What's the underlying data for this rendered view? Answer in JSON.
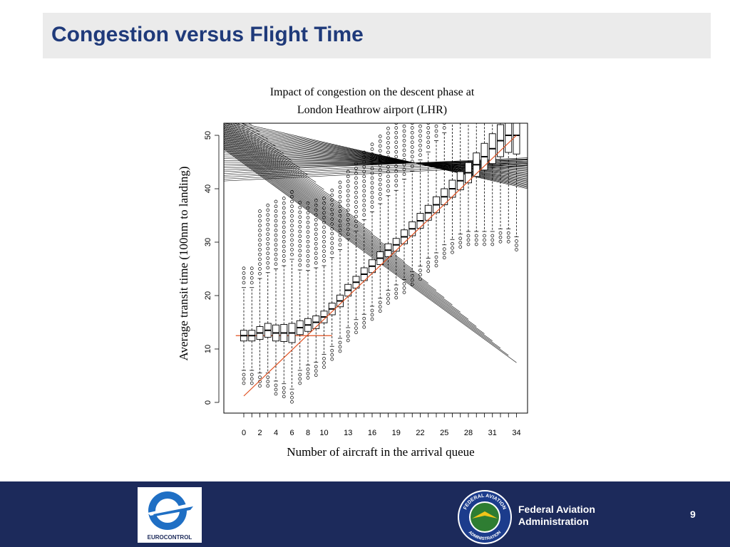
{
  "slide": {
    "title": "Congestion versus Flight Time",
    "page_number": "9"
  },
  "footer": {
    "eurocontrol_label": "EUROCONTROL",
    "faa_line1": "Federal Aviation",
    "faa_line2": "Administration",
    "seal_top_text": "FEDERAL AVIATION",
    "seal_bottom_text": "ADMINISTRATION"
  },
  "colors": {
    "title_text": "#1f3a7a",
    "title_bar": "#ebebeb",
    "footer_bg": "#1c2a5b",
    "fit_line": "#e05020"
  },
  "chart_data": {
    "type": "boxplot",
    "title_line1": "Impact of congestion on the descent phase at",
    "title_line2": "London Heathrow airport (LHR)",
    "xlabel": "Number of aircraft in the arrival queue",
    "ylabel": "Average transit time (100nm to landing)",
    "x_tick_labels": [
      "0",
      "2",
      "4",
      "6",
      "8",
      "10",
      "13",
      "16",
      "19",
      "22",
      "25",
      "28",
      "31",
      "34"
    ],
    "y_tick_labels": [
      "0",
      "10",
      "20",
      "30",
      "40",
      "50"
    ],
    "ylim": [
      0,
      54
    ],
    "categories": [
      0,
      1,
      2,
      3,
      4,
      5,
      6,
      7,
      8,
      9,
      10,
      11,
      12,
      13,
      14,
      15,
      16,
      17,
      18,
      19,
      20,
      21,
      22,
      23,
      24,
      25,
      26,
      27,
      28,
      29,
      30,
      31,
      32,
      33,
      34
    ],
    "medians": [
      12.5,
      12.5,
      13.0,
      13.5,
      13.0,
      13.0,
      13.0,
      14.0,
      14.5,
      15.0,
      16.0,
      17.5,
      19.0,
      21.0,
      22.5,
      24.0,
      25.5,
      27.0,
      28.5,
      29.5,
      31.0,
      32.5,
      34.0,
      35.5,
      37.0,
      38.5,
      40.0,
      41.5,
      43.0,
      44.5,
      46.0,
      47.5,
      49.0,
      50.0,
      50.0
    ],
    "box_halfwidths": [
      1.0,
      1.0,
      1.2,
      1.3,
      1.5,
      1.6,
      1.8,
      1.3,
      1.2,
      1.2,
      1.1,
      1.1,
      1.1,
      1.1,
      1.1,
      1.2,
      1.2,
      1.2,
      1.2,
      1.2,
      1.3,
      1.3,
      1.4,
      1.4,
      1.5,
      1.5,
      1.6,
      1.7,
      1.9,
      2.2,
      2.5,
      2.8,
      3.0,
      3.2,
      3.5
    ],
    "fit_line": {
      "x": [
        0,
        34
      ],
      "y": [
        1.2,
        50.0
      ]
    },
    "baseline_line": {
      "x": [
        -1,
        11
      ],
      "y": [
        12.5,
        12.5
      ]
    }
  }
}
